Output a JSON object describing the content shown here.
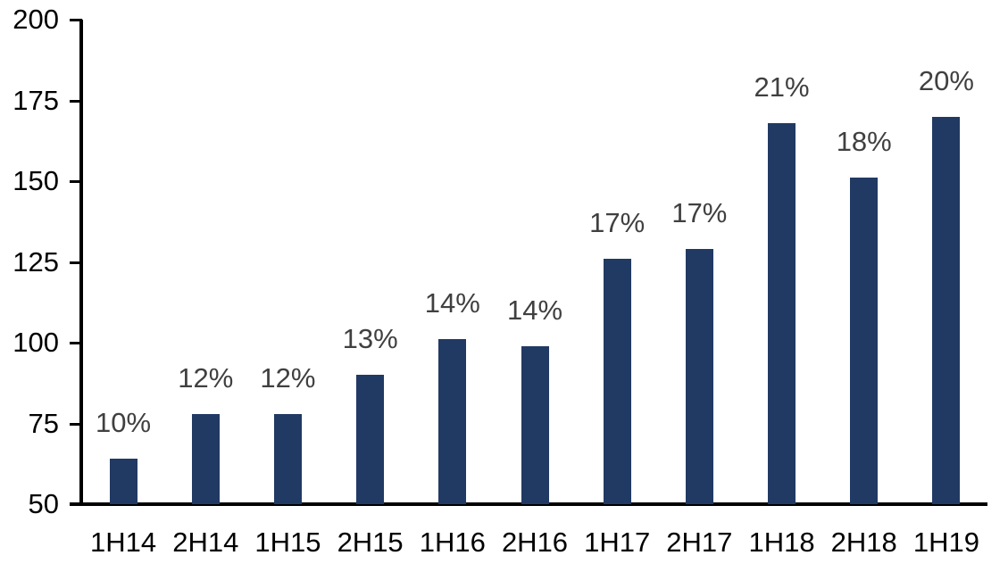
{
  "chart_data": {
    "type": "bar",
    "title": "",
    "xlabel": "",
    "ylabel": "",
    "categories": [
      "1H14",
      "2H14",
      "1H15",
      "2H15",
      "1H16",
      "2H16",
      "1H17",
      "2H17",
      "1H18",
      "2H18",
      "1H19"
    ],
    "values": [
      64,
      78,
      78,
      90,
      101,
      99,
      126,
      129,
      168,
      151,
      170
    ],
    "data_labels": [
      "10%",
      "12%",
      "12%",
      "13%",
      "14%",
      "14%",
      "17%",
      "17%",
      "21%",
      "18%",
      "20%"
    ],
    "y_ticks": [
      50,
      75,
      100,
      125,
      150,
      175,
      200
    ],
    "ylim": [
      50,
      200
    ],
    "grid": false,
    "legend": false,
    "bar_color": "#213A63",
    "data_label_color": "#404040",
    "axis_color": "#000000",
    "background_color": "#FFFFFF"
  }
}
